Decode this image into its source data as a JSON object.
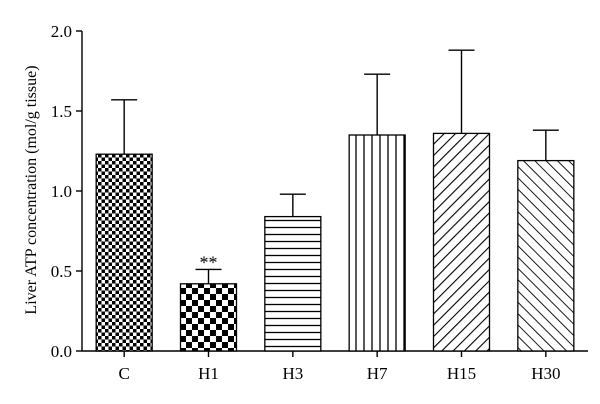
{
  "chart_data": {
    "type": "bar",
    "categories": [
      "C",
      "H1",
      "H3",
      "H7",
      "H15",
      "H30"
    ],
    "values": [
      1.23,
      0.42,
      0.84,
      1.35,
      1.36,
      1.19
    ],
    "errors": [
      0.34,
      0.09,
      0.14,
      0.38,
      0.52,
      0.19
    ],
    "patterns": [
      "fine-checker",
      "coarse-checker",
      "horizontal-lines",
      "vertical-lines",
      "diagonal-lines",
      "diagonal-lines-light"
    ],
    "annotations": [
      {
        "category": "H1",
        "text": "**"
      }
    ],
    "title": "",
    "xlabel": "",
    "ylabel": "Liver ATP concentration (mol/g tissue)",
    "ylim": [
      0.0,
      2.0
    ],
    "yticks": [
      "0.0",
      "0.5",
      "1.0",
      "1.5",
      "2.0"
    ],
    "grid": false,
    "colors": {
      "fill": "#ffffff",
      "ink": "#000000"
    }
  }
}
